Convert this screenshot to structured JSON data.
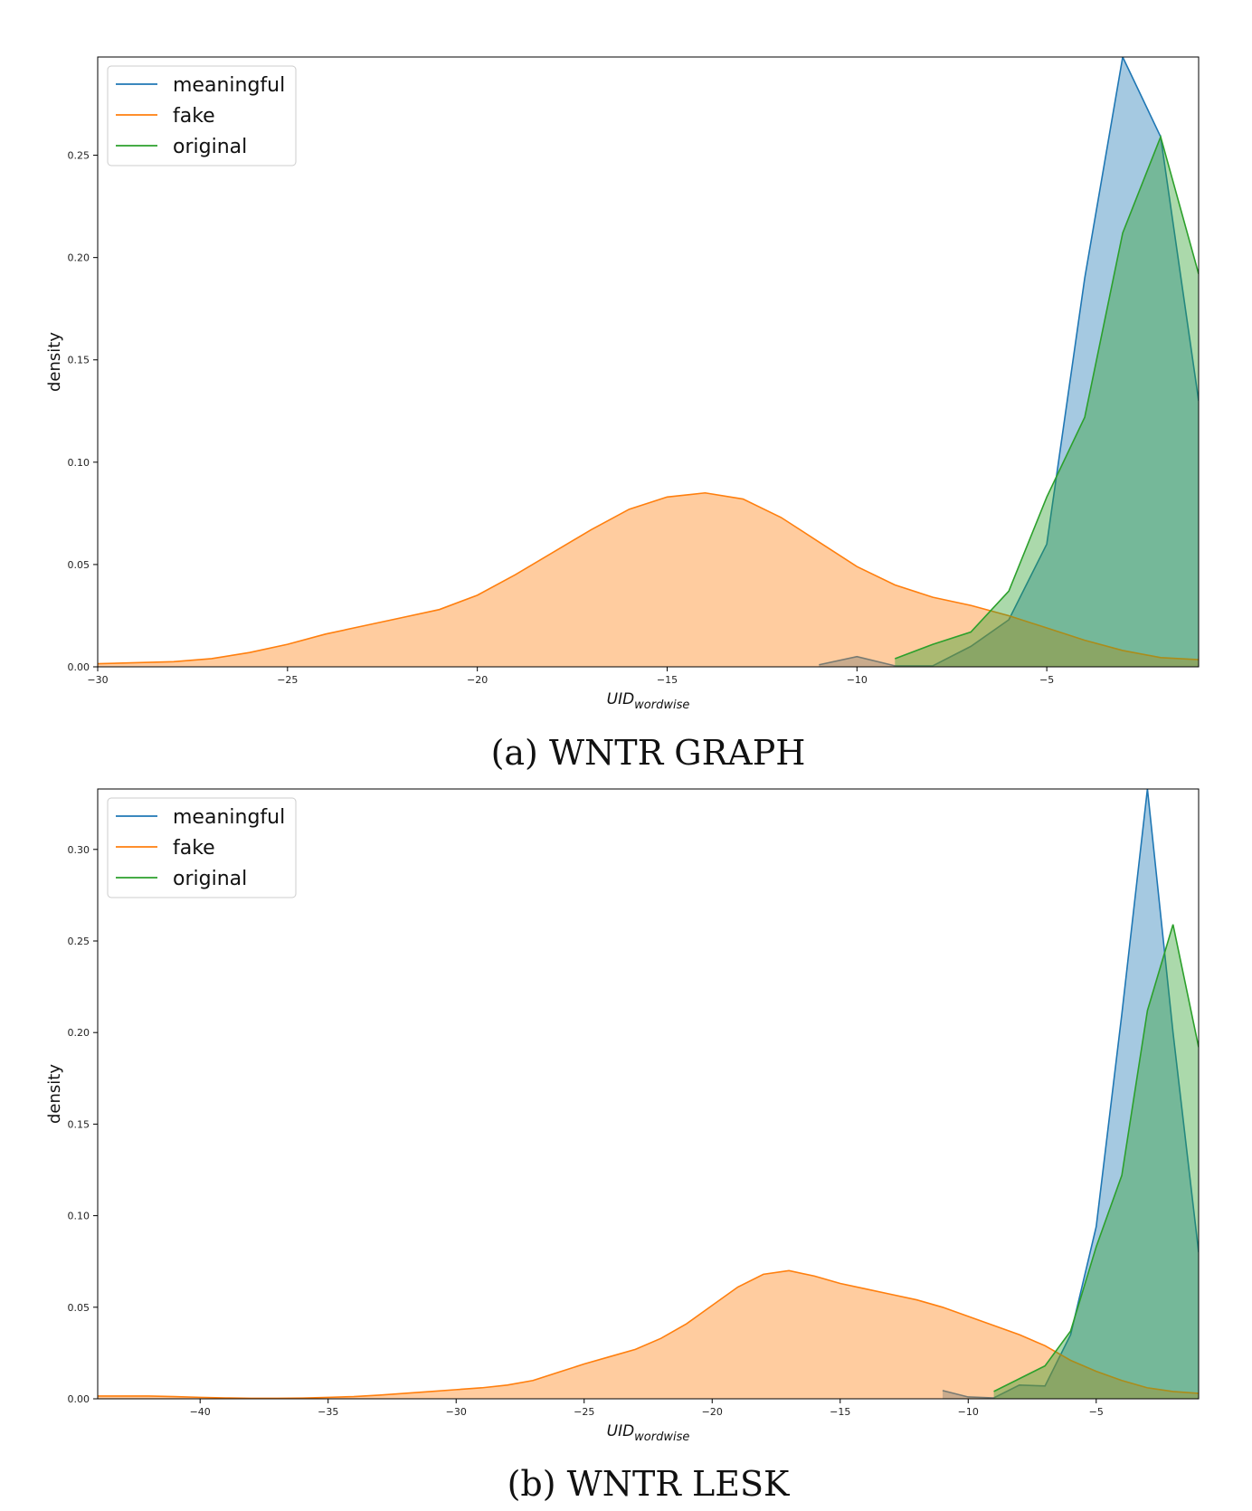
{
  "chart_data": [
    {
      "type": "area",
      "caption": "(a) WNTR GRAPH",
      "xlabel_main": "UID",
      "xlabel_sub": "wordwise",
      "ylabel": "density",
      "xlim": [
        -30,
        -1
      ],
      "ylim": [
        0,
        0.298
      ],
      "xticks": [
        -30,
        -25,
        -20,
        -15,
        -10,
        -5
      ],
      "yticks": [
        0.0,
        0.05,
        0.1,
        0.15,
        0.2,
        0.25
      ],
      "legend_position": "upper-left",
      "series": [
        {
          "name": "meaningful",
          "color": "#1f77b4",
          "x": [
            -11,
            -10,
            -9,
            -8,
            -7,
            -6,
            -5,
            -4,
            -3,
            -2,
            -1
          ],
          "y": [
            0.001,
            0.005,
            0.0005,
            0.0005,
            0.01,
            0.023,
            0.06,
            0.19,
            0.298,
            0.259,
            0.13
          ]
        },
        {
          "name": "fake",
          "color": "#ff7f0e",
          "x": [
            -30,
            -29,
            -28,
            -27,
            -26,
            -25,
            -24,
            -23,
            -22,
            -21,
            -20,
            -19,
            -18,
            -17,
            -16,
            -15,
            -14,
            -13,
            -12,
            -11,
            -10,
            -9,
            -8,
            -7,
            -6,
            -5,
            -4,
            -3,
            -2,
            -1
          ],
          "y": [
            0.0015,
            0.002,
            0.0025,
            0.004,
            0.007,
            0.011,
            0.016,
            0.02,
            0.024,
            0.028,
            0.035,
            0.045,
            0.056,
            0.067,
            0.077,
            0.083,
            0.085,
            0.082,
            0.073,
            0.061,
            0.049,
            0.04,
            0.034,
            0.03,
            0.025,
            0.019,
            0.013,
            0.008,
            0.0045,
            0.0035
          ]
        },
        {
          "name": "original",
          "color": "#2ca02c",
          "x": [
            -9,
            -8,
            -7,
            -6,
            -5,
            -4,
            -3,
            -2,
            -1
          ],
          "y": [
            0.004,
            0.011,
            0.017,
            0.037,
            0.083,
            0.122,
            0.212,
            0.259,
            0.192
          ]
        }
      ]
    },
    {
      "type": "area",
      "caption": "(b) WNTR LESK",
      "xlabel_main": "UID",
      "xlabel_sub": "wordwise",
      "ylabel": "density",
      "xlim": [
        -44,
        -1
      ],
      "ylim": [
        0,
        0.333
      ],
      "xticks": [
        -40,
        -35,
        -30,
        -25,
        -20,
        -15,
        -10,
        -5
      ],
      "yticks": [
        0.0,
        0.05,
        0.1,
        0.15,
        0.2,
        0.25,
        0.3
      ],
      "legend_position": "upper-left",
      "series": [
        {
          "name": "meaningful",
          "color": "#1f77b4",
          "x": [
            -11,
            -10,
            -9,
            -8,
            -7,
            -6,
            -5,
            -4,
            -3,
            -2,
            -1
          ],
          "y": [
            0.0045,
            0.001,
            0.0005,
            0.0075,
            0.007,
            0.035,
            0.094,
            0.21,
            0.333,
            0.2,
            0.08
          ]
        },
        {
          "name": "fake",
          "color": "#ff7f0e",
          "x": [
            -44,
            -43,
            -42,
            -41,
            -40,
            -39,
            -38,
            -37,
            -36,
            -35,
            -34,
            -33,
            -32,
            -31,
            -30,
            -29,
            -28,
            -27,
            -26,
            -25,
            -24,
            -23,
            -22,
            -21,
            -20,
            -19,
            -18,
            -17,
            -16,
            -15,
            -14,
            -13,
            -12,
            -11,
            -10,
            -9,
            -8,
            -7,
            -6,
            -5,
            -4,
            -3,
            -2,
            -1
          ],
          "y": [
            0.0015,
            0.0015,
            0.0015,
            0.0012,
            0.0008,
            0.0005,
            0.0003,
            0.0003,
            0.0004,
            0.0008,
            0.0012,
            0.002,
            0.003,
            0.004,
            0.005,
            0.006,
            0.0075,
            0.01,
            0.0145,
            0.019,
            0.023,
            0.027,
            0.033,
            0.041,
            0.051,
            0.061,
            0.068,
            0.07,
            0.067,
            0.063,
            0.06,
            0.057,
            0.054,
            0.05,
            0.045,
            0.04,
            0.035,
            0.029,
            0.021,
            0.015,
            0.01,
            0.006,
            0.004,
            0.003
          ]
        },
        {
          "name": "original",
          "color": "#2ca02c",
          "x": [
            -9,
            -8,
            -7,
            -6,
            -5,
            -4,
            -3,
            -2,
            -1
          ],
          "y": [
            0.004,
            0.011,
            0.018,
            0.037,
            0.083,
            0.122,
            0.212,
            0.259,
            0.192
          ]
        }
      ]
    }
  ]
}
